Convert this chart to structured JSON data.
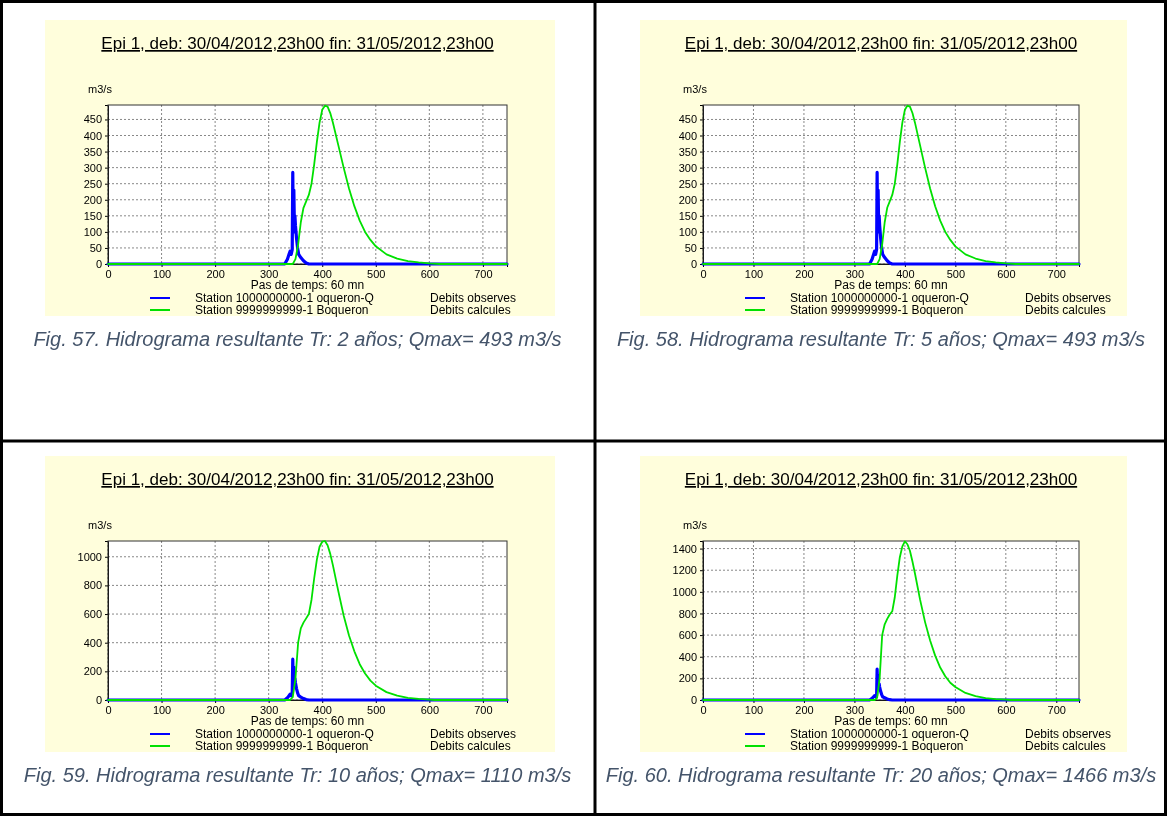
{
  "chart_data": [
    {
      "type": "line",
      "title": "Epi 1, deb: 30/04/2012,23h00 fin: 31/05/2012,23h00",
      "xlabel": "Pas de temps: 60 mn",
      "ylabel": "m3/s",
      "xlim": [
        0,
        745
      ],
      "xticks": [
        0,
        100,
        200,
        300,
        400,
        500,
        600,
        700
      ],
      "ylim": [
        0,
        495
      ],
      "yticks": [
        0,
        50,
        100,
        150,
        200,
        250,
        300,
        350,
        400,
        450
      ],
      "grid": true,
      "legend": "bottom",
      "annotations": [
        "Debits observes",
        "Debits calcules",
        "Fig.  57. Hidrograma resultante Tr: 2 años;  Qmax= 493 m3/s"
      ],
      "series": [
        {
          "name": "Station 1000000000-1 oqueron-Q",
          "color": "#0000ff",
          "x": [
            0,
            330,
            335,
            338,
            340,
            342,
            344,
            345,
            346,
            347,
            348,
            349,
            350,
            352,
            354,
            356,
            360,
            365,
            370,
            375,
            745
          ],
          "values": [
            0,
            0,
            15,
            30,
            40,
            30,
            45,
            285,
            100,
            230,
            120,
            150,
            120,
            80,
            50,
            30,
            20,
            10,
            3,
            0,
            0
          ]
        },
        {
          "name": "Station 9999999999-1 Boqueron",
          "color": "#00e000",
          "x": [
            0,
            345,
            350,
            355,
            360,
            365,
            370,
            375,
            380,
            385,
            390,
            395,
            400,
            405,
            410,
            415,
            420,
            430,
            440,
            450,
            460,
            470,
            480,
            490,
            500,
            520,
            540,
            560,
            580,
            600,
            620,
            745
          ],
          "values": [
            0,
            0,
            15,
            60,
            130,
            175,
            195,
            215,
            250,
            310,
            380,
            440,
            480,
            493,
            490,
            470,
            440,
            370,
            300,
            235,
            180,
            135,
            100,
            75,
            55,
            30,
            17,
            9,
            5,
            2,
            0,
            0
          ]
        }
      ]
    },
    {
      "type": "line",
      "title": "Epi 1, deb: 30/04/2012,23h00 fin: 31/05/2012,23h00",
      "xlabel": "Pas de temps: 60 mn",
      "ylabel": "m3/s",
      "xlim": [
        0,
        745
      ],
      "xticks": [
        0,
        100,
        200,
        300,
        400,
        500,
        600,
        700
      ],
      "ylim": [
        0,
        495
      ],
      "yticks": [
        0,
        50,
        100,
        150,
        200,
        250,
        300,
        350,
        400,
        450
      ],
      "grid": true,
      "legend": "bottom",
      "annotations": [
        "Debits observes",
        "Debits calcules",
        "Fig.  58. Hidrograma resultante Tr: 5 años;  Qmax= 493 m3/s"
      ],
      "series": [
        {
          "name": "Station 1000000000-1 oqueron-Q",
          "color": "#0000ff",
          "x": [
            0,
            330,
            335,
            338,
            340,
            342,
            344,
            345,
            346,
            347,
            348,
            349,
            350,
            352,
            354,
            356,
            360,
            365,
            370,
            375,
            745
          ],
          "values": [
            0,
            0,
            15,
            30,
            40,
            30,
            45,
            285,
            100,
            230,
            120,
            150,
            120,
            80,
            50,
            30,
            20,
            10,
            3,
            0,
            0
          ]
        },
        {
          "name": "Station 9999999999-1 Boqueron",
          "color": "#00e000",
          "x": [
            0,
            345,
            350,
            355,
            360,
            365,
            370,
            375,
            380,
            385,
            390,
            395,
            400,
            405,
            410,
            415,
            420,
            430,
            440,
            450,
            460,
            470,
            480,
            490,
            500,
            520,
            540,
            560,
            580,
            600,
            620,
            745
          ],
          "values": [
            0,
            0,
            15,
            60,
            130,
            175,
            195,
            215,
            250,
            310,
            380,
            440,
            480,
            493,
            490,
            470,
            440,
            370,
            300,
            235,
            180,
            135,
            100,
            75,
            55,
            30,
            17,
            9,
            5,
            2,
            0,
            0
          ]
        }
      ]
    },
    {
      "type": "line",
      "title": "Epi 1, deb: 30/04/2012,23h00 fin: 31/05/2012,23h00",
      "xlabel": "Pas de temps: 60 mn",
      "ylabel": "m3/s",
      "xlim": [
        0,
        745
      ],
      "xticks": [
        0,
        100,
        200,
        300,
        400,
        500,
        600,
        700
      ],
      "ylim": [
        0,
        1110
      ],
      "yticks": [
        0,
        200,
        400,
        600,
        800,
        1000
      ],
      "grid": true,
      "legend": "bottom",
      "annotations": [
        "Debits observes",
        "Debits calcules",
        "Fig.  59. Hidrograma resultante Tr: 10 años;  Qmax= 1110 m3/s"
      ],
      "series": [
        {
          "name": "Station 1000000000-1 oqueron-Q",
          "color": "#0000ff",
          "x": [
            0,
            330,
            335,
            338,
            340,
            342,
            344,
            345,
            346,
            347,
            348,
            349,
            350,
            352,
            354,
            356,
            360,
            365,
            370,
            375,
            745
          ],
          "values": [
            0,
            0,
            15,
            30,
            40,
            30,
            45,
            285,
            100,
            230,
            120,
            150,
            120,
            80,
            50,
            30,
            20,
            10,
            3,
            0,
            0
          ]
        },
        {
          "name": "Station 9999999999-1 Boqueron",
          "color": "#00e000",
          "x": [
            0,
            340,
            345,
            350,
            355,
            360,
            365,
            370,
            375,
            380,
            385,
            390,
            395,
            400,
            405,
            410,
            415,
            420,
            430,
            440,
            450,
            460,
            470,
            480,
            490,
            500,
            520,
            540,
            560,
            580,
            600,
            610,
            745
          ],
          "values": [
            0,
            0,
            20,
            150,
            400,
            500,
            540,
            570,
            600,
            700,
            850,
            980,
            1070,
            1105,
            1110,
            1080,
            1020,
            940,
            760,
            590,
            450,
            340,
            250,
            185,
            135,
            100,
            55,
            30,
            15,
            8,
            3,
            0,
            0
          ]
        }
      ]
    },
    {
      "type": "line",
      "title": "Epi 1, deb: 30/04/2012,23h00 fin: 31/05/2012,23h00",
      "xlabel": "Pas de temps: 60 mn",
      "ylabel": "m3/s",
      "xlim": [
        0,
        745
      ],
      "xticks": [
        0,
        100,
        200,
        300,
        400,
        500,
        600,
        700
      ],
      "ylim": [
        0,
        1470
      ],
      "yticks": [
        0,
        200,
        400,
        600,
        800,
        1000,
        1200,
        1400
      ],
      "grid": true,
      "legend": "bottom",
      "annotations": [
        "Debits observes",
        "Debits calcules",
        "Fig.  60. Hidrograma resultante Tr: 20 años;  Qmax= 1466 m3/s"
      ],
      "series": [
        {
          "name": "Station 1000000000-1 oqueron-Q",
          "color": "#0000ff",
          "x": [
            0,
            330,
            335,
            338,
            340,
            342,
            344,
            345,
            346,
            347,
            348,
            349,
            350,
            352,
            354,
            356,
            360,
            365,
            370,
            375,
            745
          ],
          "values": [
            0,
            0,
            15,
            30,
            40,
            30,
            45,
            285,
            100,
            230,
            120,
            150,
            120,
            80,
            50,
            30,
            20,
            10,
            3,
            0,
            0
          ]
        },
        {
          "name": "Station 9999999999-1 Boqueron",
          "color": "#00e000",
          "x": [
            0,
            340,
            345,
            350,
            355,
            360,
            365,
            370,
            375,
            380,
            385,
            390,
            395,
            400,
            405,
            410,
            415,
            420,
            430,
            440,
            450,
            460,
            470,
            480,
            490,
            500,
            520,
            540,
            560,
            580,
            600,
            610,
            745
          ],
          "values": [
            0,
            0,
            20,
            200,
            600,
            700,
            750,
            790,
            820,
            950,
            1150,
            1320,
            1420,
            1466,
            1440,
            1380,
            1280,
            1170,
            930,
            720,
            550,
            410,
            300,
            220,
            160,
            120,
            65,
            35,
            18,
            9,
            3,
            0,
            0
          ]
        }
      ]
    }
  ]
}
